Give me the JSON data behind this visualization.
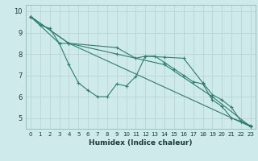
{
  "xlabel": "Humidex (Indice chaleur)",
  "ylabel": "",
  "xlim": [
    -0.5,
    23.5
  ],
  "ylim": [
    4.5,
    10.3
  ],
  "yticks": [
    5,
    6,
    7,
    8,
    9,
    10
  ],
  "xticks": [
    0,
    1,
    2,
    3,
    4,
    5,
    6,
    7,
    8,
    9,
    10,
    11,
    12,
    13,
    14,
    15,
    16,
    17,
    18,
    19,
    20,
    21,
    22,
    23
  ],
  "bg_color": "#ceeaea",
  "line_color": "#2e7d6e",
  "grid_color": "#b8d4d4",
  "lines": [
    {
      "x": [
        0,
        1,
        2,
        3,
        4,
        23
      ],
      "y": [
        9.75,
        9.35,
        9.2,
        8.5,
        8.5,
        4.6
      ]
    },
    {
      "x": [
        0,
        3,
        4,
        5,
        6,
        7,
        8,
        9,
        10,
        11,
        12,
        13,
        14,
        15,
        16,
        17,
        18,
        19,
        20,
        21,
        22,
        23
      ],
      "y": [
        9.75,
        8.5,
        7.5,
        6.65,
        6.3,
        6.0,
        6.0,
        6.6,
        6.5,
        6.95,
        7.9,
        7.9,
        7.6,
        7.3,
        7.0,
        6.7,
        6.6,
        5.85,
        5.55,
        5.0,
        4.85,
        4.6
      ]
    },
    {
      "x": [
        0,
        4,
        9,
        11,
        12,
        14,
        16,
        18,
        19,
        20,
        21,
        22,
        23
      ],
      "y": [
        9.75,
        8.5,
        8.3,
        7.8,
        7.9,
        7.85,
        7.8,
        6.65,
        6.1,
        5.85,
        5.5,
        4.85,
        4.65
      ]
    },
    {
      "x": [
        0,
        4,
        9,
        14,
        19,
        23
      ],
      "y": [
        9.75,
        8.5,
        8.0,
        7.5,
        6.0,
        4.6
      ]
    }
  ]
}
